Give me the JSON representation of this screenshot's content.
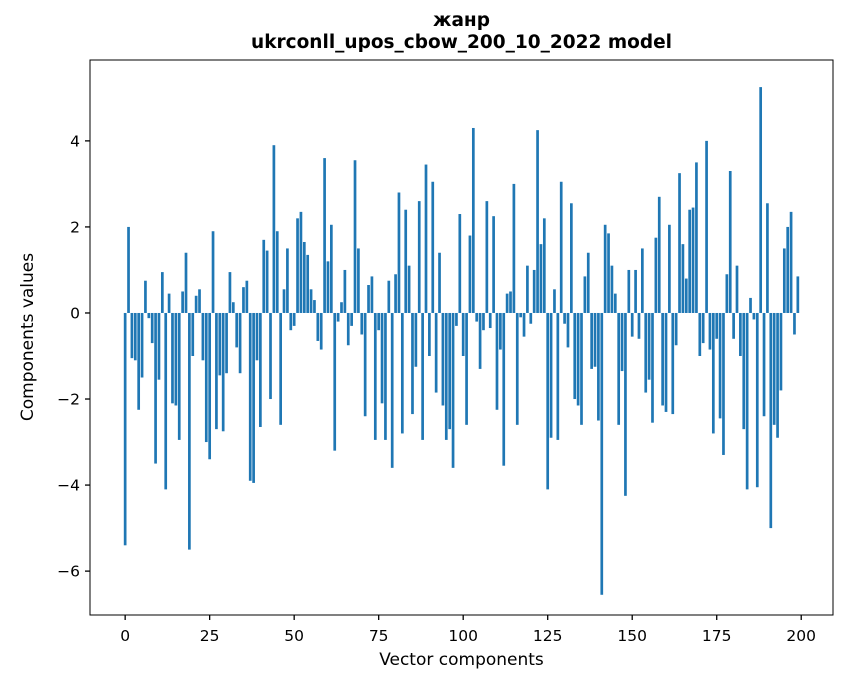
{
  "chart_data": {
    "type": "bar",
    "title_line1": "жанр",
    "title_line2": "ukrconll_upos_cbow_200_10_2022 model",
    "xlabel": "Vector components",
    "ylabel": "Components values",
    "bar_color": "#1f77b4",
    "axis_color": "#000000",
    "grid": false,
    "legend": "none",
    "x_ticks": [
      0,
      25,
      50,
      75,
      100,
      125,
      150,
      175,
      200
    ],
    "y_ticks": [
      -6,
      -4,
      -2,
      0,
      2,
      4
    ],
    "xlim": [
      -10.4,
      209.4
    ],
    "ylim": [
      -7.02,
      5.88
    ],
    "n_components": 200,
    "values": [
      -5.4,
      2.0,
      -1.05,
      -1.1,
      -2.25,
      -1.5,
      0.75,
      -0.12,
      -0.7,
      -3.5,
      -1.55,
      0.95,
      -4.1,
      0.45,
      -2.1,
      -2.15,
      -2.95,
      0.5,
      1.4,
      -5.5,
      -1.0,
      0.4,
      0.55,
      -1.1,
      -3.0,
      -3.4,
      1.9,
      -2.7,
      -1.45,
      -2.75,
      -1.4,
      0.95,
      0.25,
      -0.8,
      -1.4,
      0.6,
      0.75,
      -3.9,
      -3.95,
      -1.1,
      -2.65,
      1.7,
      1.45,
      -2.0,
      3.9,
      1.9,
      -2.6,
      0.55,
      1.5,
      -0.4,
      -0.3,
      2.2,
      2.35,
      1.65,
      1.35,
      0.55,
      0.3,
      -0.65,
      -0.85,
      3.6,
      1.2,
      2.05,
      -3.2,
      -0.2,
      0.25,
      1.0,
      -0.75,
      -0.3,
      3.55,
      1.5,
      -0.5,
      -2.4,
      0.65,
      0.85,
      -2.95,
      -0.4,
      -2.1,
      -2.95,
      0.75,
      -3.6,
      0.9,
      2.8,
      -2.8,
      2.4,
      1.1,
      -2.35,
      -1.25,
      2.6,
      -2.95,
      3.45,
      -1.0,
      3.05,
      -1.85,
      1.4,
      -2.15,
      -2.95,
      -2.7,
      -3.6,
      -0.3,
      2.3,
      -1.0,
      -2.6,
      1.8,
      4.3,
      -0.2,
      -1.3,
      -0.4,
      2.6,
      -0.35,
      2.25,
      -2.25,
      -0.85,
      -3.55,
      0.45,
      0.5,
      3.0,
      -2.6,
      -0.1,
      -0.55,
      1.1,
      -0.25,
      1.0,
      4.25,
      1.6,
      2.2,
      -4.1,
      -2.9,
      0.55,
      -2.95,
      3.05,
      -0.25,
      -0.8,
      2.55,
      -2.0,
      -2.15,
      -2.6,
      0.85,
      1.4,
      -1.3,
      -1.25,
      -2.5,
      -6.55,
      2.05,
      1.85,
      1.1,
      0.45,
      -2.6,
      -1.35,
      -4.25,
      1.0,
      -0.55,
      1.0,
      -0.6,
      1.5,
      -1.85,
      -1.55,
      -2.55,
      1.75,
      2.7,
      -2.15,
      -2.3,
      2.05,
      -2.35,
      -0.75,
      3.25,
      1.6,
      0.8,
      2.4,
      2.45,
      3.5,
      -1.0,
      -0.7,
      4.0,
      -0.85,
      -2.8,
      -0.6,
      -2.45,
      -3.3,
      0.9,
      3.3,
      -0.6,
      1.1,
      -1.0,
      -2.7,
      -4.1,
      0.35,
      -0.15,
      -4.05,
      5.25,
      -2.4,
      2.55,
      -5.0,
      -2.6,
      -2.9,
      -1.8,
      1.5,
      2.0,
      2.35,
      -0.5,
      0.85
    ]
  }
}
